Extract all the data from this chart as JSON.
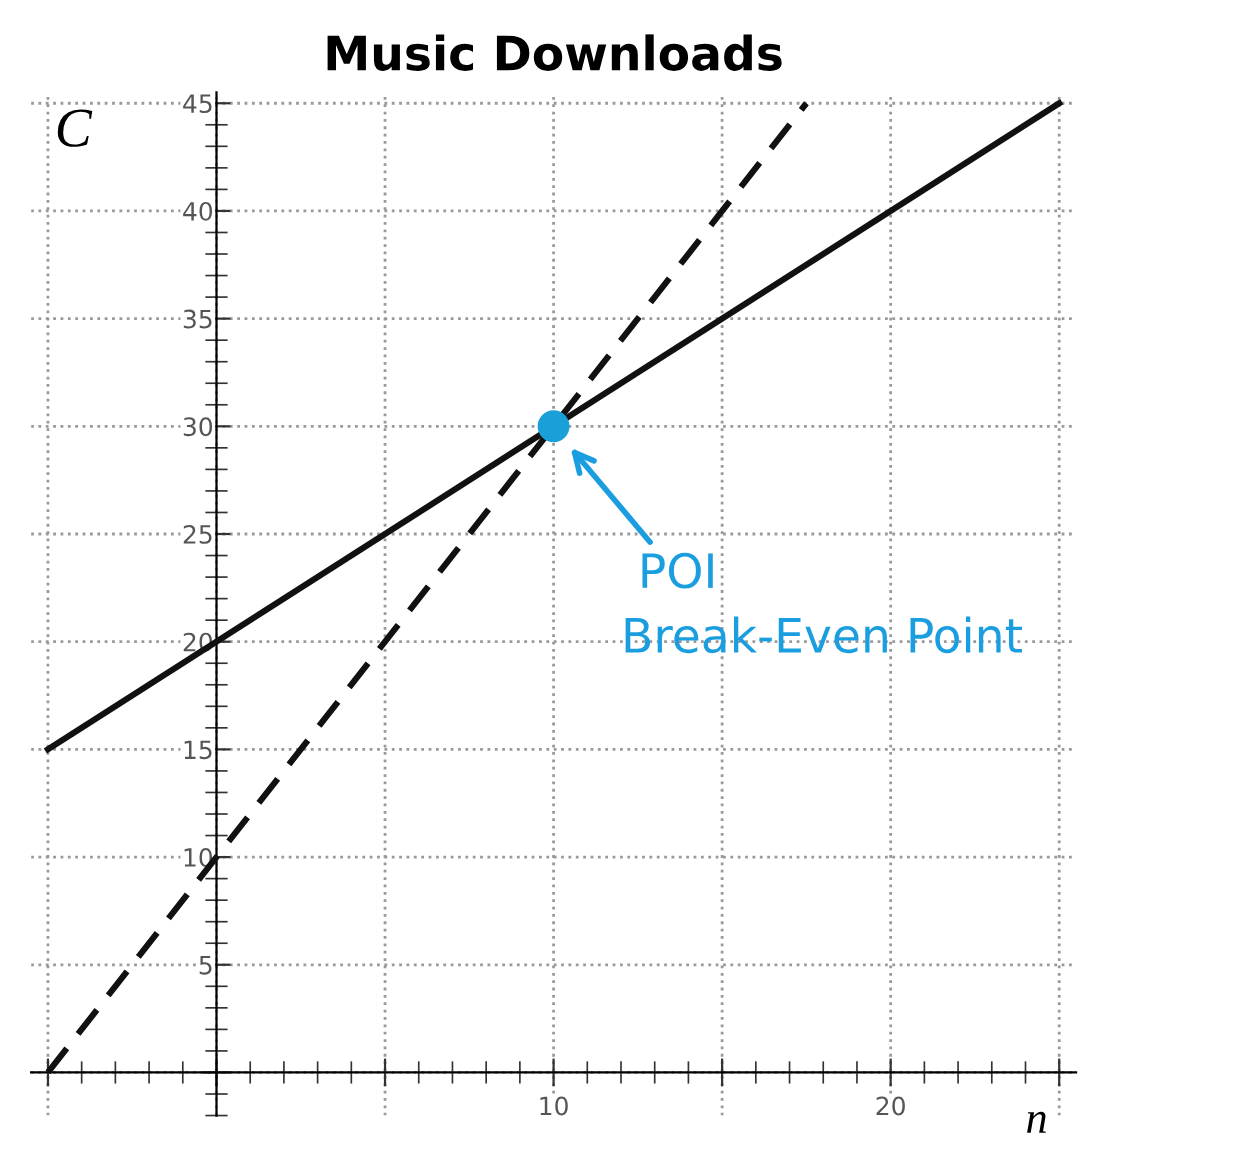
{
  "chart_data": {
    "type": "line",
    "title": "Music Downloads",
    "xlabel": "n",
    "ylabel": "C",
    "series": [
      {
        "x": [
          -5,
          25
        ],
        "values": [
          15,
          45
        ],
        "color": "#111111",
        "line_style": "solid",
        "marker": "none"
      },
      {
        "x": [
          -5,
          17.5
        ],
        "values": [
          0,
          45
        ],
        "color": "#111111",
        "line_style": "dashed",
        "marker": "none"
      },
      {
        "type": "scatter",
        "x": [
          10
        ],
        "values": [
          30
        ],
        "color": "#1aa0d8",
        "marker": "circle"
      }
    ],
    "xlim": [
      -5.5,
      25.5
    ],
    "ylim": [
      -2,
      45.5
    ],
    "xticks": [
      {
        "value": -5,
        "label": null
      },
      {
        "value": 0,
        "label": null
      },
      {
        "value": 5,
        "label": null
      },
      10,
      {
        "value": 15,
        "label": null
      },
      20,
      {
        "value": 25,
        "label": null
      }
    ],
    "yticks": [
      {
        "value": 0,
        "label": null
      },
      5,
      10,
      15,
      20,
      25,
      30,
      35,
      40,
      45
    ],
    "grid": true,
    "legend": false,
    "annotations": [
      "POI",
      "Break-Even Point"
    ]
  }
}
